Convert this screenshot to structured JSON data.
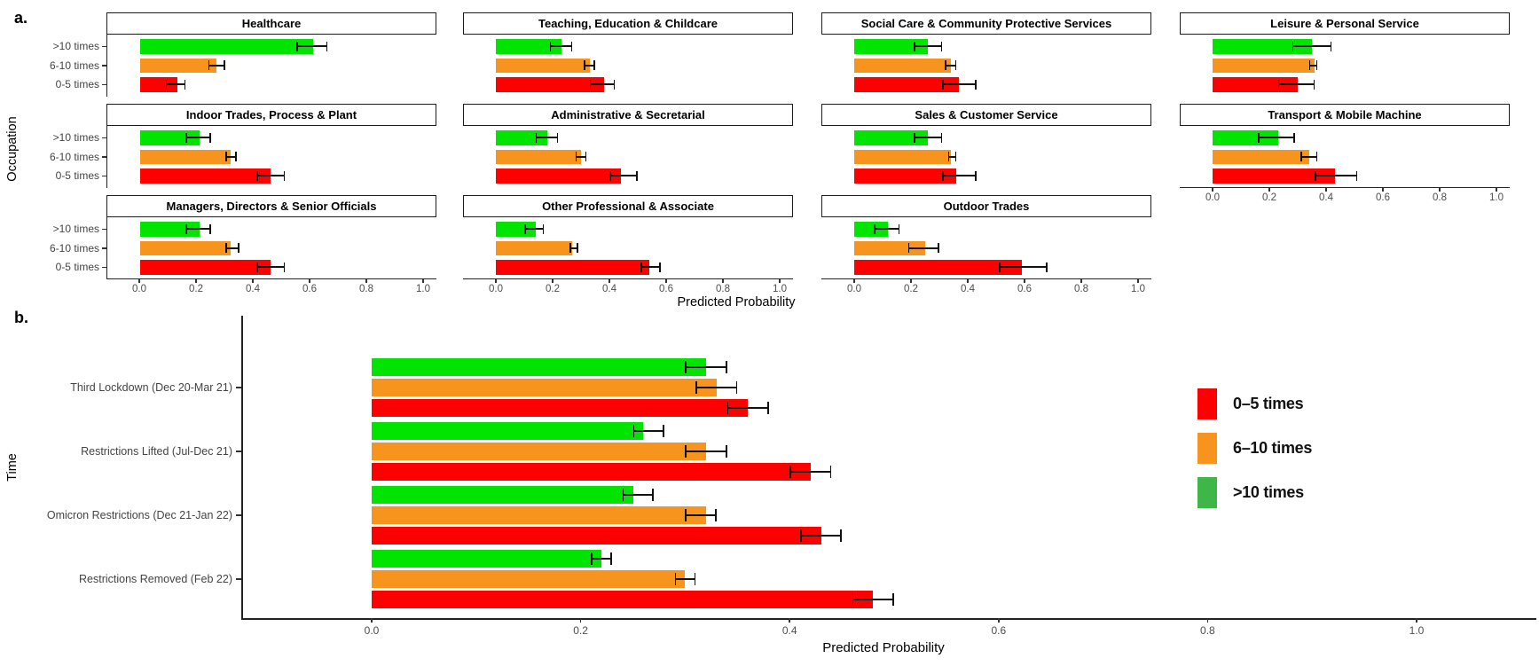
{
  "figure": {
    "background": "#ffffff"
  },
  "panels": {
    "a": {
      "label": "a.",
      "ylabel": "Occupation",
      "xlabel": "Predicted Probability"
    },
    "b": {
      "label": "b.",
      "ylabel": "Time",
      "xlabel": "Predicted Probability"
    }
  },
  "legend": {
    "position": "right",
    "items": [
      {
        "label": "0–5 times",
        "color": "#fd0000"
      },
      {
        "label": "6–10 times",
        "color": "#f7941d"
      },
      {
        "label": ">10 times",
        "color": "#3eb748"
      }
    ]
  },
  "colors": {
    "bar_green": "#00e400",
    "bar_orange": "#f7941d",
    "bar_red": "#fd0000",
    "axis": "#222222",
    "tick_text": "#4d4d4d",
    "error_bar": "#111111"
  },
  "chart_data": [
    {
      "type": "bar",
      "panel": "a",
      "orientation": "horizontal",
      "xlabel": "Predicted Probability",
      "ylabel": "Occupation",
      "categories": [
        ">10 times",
        "6-10 times",
        "0-5 times"
      ],
      "series_colors": [
        "#00e400",
        "#f7941d",
        "#fd0000"
      ],
      "xlim": [
        0,
        1.05
      ],
      "xticks": [
        0.0,
        0.2,
        0.4,
        0.6,
        0.8,
        1.0
      ],
      "grid": false,
      "error_bars": true,
      "facets": [
        {
          "title": "Healthcare",
          "row": 0,
          "col": 0,
          "values": [
            0.61,
            0.27,
            0.13
          ],
          "ci": [
            [
              0.55,
              0.66
            ],
            [
              0.24,
              0.3
            ],
            [
              0.09,
              0.16
            ]
          ]
        },
        {
          "title": "Teaching, Education & Childcare",
          "row": 0,
          "col": 1,
          "values": [
            0.23,
            0.33,
            0.38
          ],
          "ci": [
            [
              0.19,
              0.27
            ],
            [
              0.31,
              0.35
            ],
            [
              0.33,
              0.42
            ]
          ]
        },
        {
          "title": "Social Care & Community Protective Services",
          "row": 0,
          "col": 2,
          "values": [
            0.26,
            0.34,
            0.37
          ],
          "ci": [
            [
              0.21,
              0.31
            ],
            [
              0.32,
              0.36
            ],
            [
              0.31,
              0.43
            ]
          ]
        },
        {
          "title": "Leisure & Personal Service",
          "row": 0,
          "col": 3,
          "values": [
            0.35,
            0.36,
            0.3
          ],
          "ci": [
            [
              0.28,
              0.42
            ],
            [
              0.34,
              0.37
            ],
            [
              0.23,
              0.36
            ]
          ]
        },
        {
          "title": "Indoor Trades, Process & Plant",
          "row": 1,
          "col": 0,
          "values": [
            0.21,
            0.32,
            0.46
          ],
          "ci": [
            [
              0.16,
              0.25
            ],
            [
              0.3,
              0.34
            ],
            [
              0.41,
              0.51
            ]
          ]
        },
        {
          "title": "Administrative & Secretarial",
          "row": 1,
          "col": 1,
          "values": [
            0.18,
            0.3,
            0.44
          ],
          "ci": [
            [
              0.14,
              0.22
            ],
            [
              0.28,
              0.32
            ],
            [
              0.4,
              0.5
            ]
          ]
        },
        {
          "title": "Sales & Customer Service",
          "row": 1,
          "col": 2,
          "values": [
            0.26,
            0.34,
            0.36
          ],
          "ci": [
            [
              0.21,
              0.31
            ],
            [
              0.33,
              0.36
            ],
            [
              0.31,
              0.43
            ]
          ]
        },
        {
          "title": "Transport & Mobile Machine",
          "row": 1,
          "col": 3,
          "values": [
            0.23,
            0.34,
            0.43
          ],
          "ci": [
            [
              0.16,
              0.29
            ],
            [
              0.31,
              0.37
            ],
            [
              0.36,
              0.51
            ]
          ]
        },
        {
          "title": "Managers, Directors & Senior Officials",
          "row": 2,
          "col": 0,
          "values": [
            0.21,
            0.32,
            0.46
          ],
          "ci": [
            [
              0.16,
              0.25
            ],
            [
              0.3,
              0.35
            ],
            [
              0.41,
              0.51
            ]
          ]
        },
        {
          "title": "Other Professional & Associate",
          "row": 2,
          "col": 1,
          "values": [
            0.14,
            0.27,
            0.54
          ],
          "ci": [
            [
              0.1,
              0.17
            ],
            [
              0.26,
              0.29
            ],
            [
              0.51,
              0.58
            ]
          ]
        },
        {
          "title": "Outdoor Trades",
          "row": 2,
          "col": 2,
          "values": [
            0.12,
            0.25,
            0.59
          ],
          "ci": [
            [
              0.07,
              0.16
            ],
            [
              0.19,
              0.3
            ],
            [
              0.51,
              0.68
            ]
          ]
        }
      ]
    },
    {
      "type": "bar",
      "panel": "b",
      "orientation": "horizontal",
      "xlabel": "Predicted Probability",
      "ylabel": "Time",
      "categories": [
        "Third Lockdown (Dec 20-Mar 21)",
        "Restrictions Lifted (Jul-Dec 21)",
        "Omicron Restrictions (Dec 21-Jan 22)",
        "Restrictions Removed (Feb 22)"
      ],
      "series": [
        {
          "name": ">10 times",
          "color": "#00e400",
          "values": [
            0.32,
            0.26,
            0.25,
            0.22
          ],
          "ci": [
            [
              0.3,
              0.34
            ],
            [
              0.25,
              0.28
            ],
            [
              0.24,
              0.27
            ],
            [
              0.21,
              0.23
            ]
          ]
        },
        {
          "name": "6-10 times",
          "color": "#f7941d",
          "values": [
            0.33,
            0.32,
            0.32,
            0.3
          ],
          "ci": [
            [
              0.31,
              0.35
            ],
            [
              0.3,
              0.34
            ],
            [
              0.3,
              0.33
            ],
            [
              0.29,
              0.31
            ]
          ]
        },
        {
          "name": "0-5 times",
          "color": "#fd0000",
          "values": [
            0.36,
            0.42,
            0.43,
            0.48
          ],
          "ci": [
            [
              0.34,
              0.38
            ],
            [
              0.4,
              0.44
            ],
            [
              0.41,
              0.45
            ],
            [
              0.46,
              0.5
            ]
          ]
        }
      ],
      "xlim": [
        0,
        1.1
      ],
      "xticks": [
        0.0,
        0.2,
        0.4,
        0.6,
        0.8,
        1.0
      ],
      "grid": false,
      "error_bars": true,
      "legend_position": "right"
    }
  ]
}
